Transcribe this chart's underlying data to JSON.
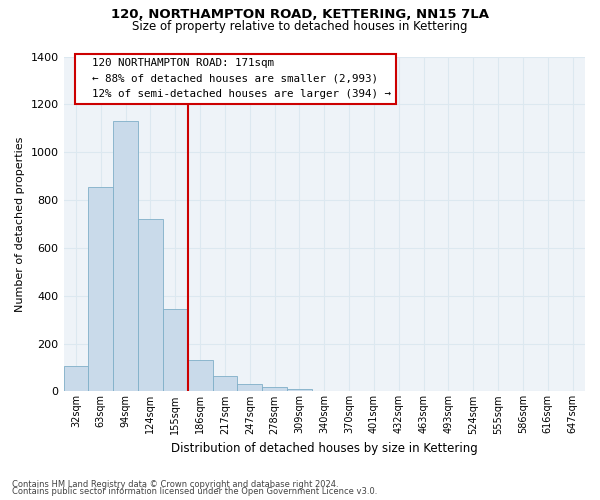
{
  "title": "120, NORTHAMPTON ROAD, KETTERING, NN15 7LA",
  "subtitle": "Size of property relative to detached houses in Kettering",
  "xlabel": "Distribution of detached houses by size in Kettering",
  "ylabel": "Number of detached properties",
  "footnote1": "Contains HM Land Registry data © Crown copyright and database right 2024.",
  "footnote2": "Contains public sector information licensed under the Open Government Licence v3.0.",
  "bar_labels": [
    "32sqm",
    "63sqm",
    "94sqm",
    "124sqm",
    "155sqm",
    "186sqm",
    "217sqm",
    "247sqm",
    "278sqm",
    "309sqm",
    "340sqm",
    "370sqm",
    "401sqm",
    "432sqm",
    "463sqm",
    "493sqm",
    "524sqm",
    "555sqm",
    "586sqm",
    "616sqm",
    "647sqm"
  ],
  "bar_values": [
    105,
    855,
    1130,
    720,
    345,
    130,
    65,
    30,
    18,
    12,
    0,
    0,
    0,
    0,
    0,
    0,
    0,
    0,
    0,
    0,
    0
  ],
  "bar_color": "#c9daea",
  "bar_edge_color": "#7fafc8",
  "vline_x": 4.5,
  "vline_color": "#cc0000",
  "ylim": [
    0,
    1400
  ],
  "yticks": [
    0,
    200,
    400,
    600,
    800,
    1000,
    1200,
    1400
  ],
  "annotation_title": "120 NORTHAMPTON ROAD: 171sqm",
  "annotation_line1": "← 88% of detached houses are smaller (2,993)",
  "annotation_line2": "12% of semi-detached houses are larger (394) →",
  "grid_color": "#dce8f0",
  "bg_color": "#eef3f8"
}
